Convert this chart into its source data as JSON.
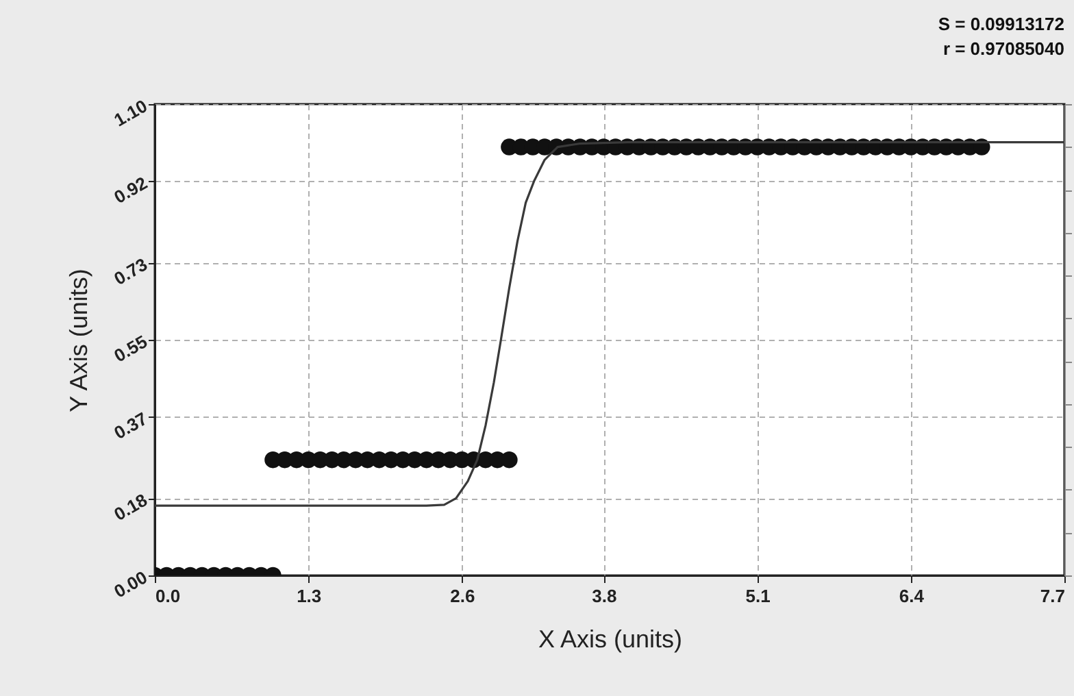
{
  "chart_data": {
    "type": "scatter",
    "xlabel": "X Axis (units)",
    "ylabel": "Y Axis (units)",
    "annotations": [
      "S = 0.09913172",
      "r = 0.97085040"
    ],
    "xlim": [
      0,
      7.7
    ],
    "xticks": [
      {
        "value": 0,
        "label": "0.0"
      },
      1.3,
      2.6,
      3.8,
      5.1,
      6.4,
      7.7
    ],
    "ylim": [
      0,
      1.1
    ],
    "yticks": [
      {
        "value": 0,
        "label": "0.00"
      },
      0.18,
      0.37,
      0.55,
      0.73,
      0.92,
      {
        "value": 1.1,
        "label": "1.10"
      }
    ],
    "grid": true,
    "marker": "circle",
    "series": [
      {
        "color": "#111111",
        "x": [
          0,
          0.1,
          0.2,
          0.3,
          0.4,
          0.5,
          0.6,
          0.7,
          0.8,
          0.9,
          1.0,
          1.0,
          1.1,
          1.2,
          1.3,
          1.4,
          1.5,
          1.6,
          1.7,
          1.8,
          1.9,
          2.0,
          2.1,
          2.2,
          2.3,
          2.4,
          2.5,
          2.6,
          2.7,
          2.8,
          2.9,
          3.0,
          3.0,
          3.1,
          3.2,
          3.3,
          3.4,
          3.5,
          3.6,
          3.7,
          3.8,
          3.9,
          4.0,
          4.1,
          4.2,
          4.3,
          4.4,
          4.5,
          4.6,
          4.7,
          4.8,
          4.9,
          5.0,
          5.1,
          5.2,
          5.3,
          5.4,
          5.5,
          5.6,
          5.7,
          5.8,
          5.9,
          6.0,
          6.1,
          6.2,
          6.3,
          6.4,
          6.5,
          6.6,
          6.7,
          6.8,
          6.9,
          7.0
        ],
        "values": [
          0,
          0,
          0,
          0,
          0,
          0,
          0,
          0,
          0,
          0,
          0,
          0.27,
          0.27,
          0.27,
          0.27,
          0.27,
          0.27,
          0.27,
          0.27,
          0.27,
          0.27,
          0.27,
          0.27,
          0.27,
          0.27,
          0.27,
          0.27,
          0.27,
          0.27,
          0.27,
          0.27,
          0.27,
          1.0,
          1.0,
          1.0,
          1.0,
          1.0,
          1.0,
          1.0,
          1.0,
          1.0,
          1.0,
          1.0,
          1.0,
          1.0,
          1.0,
          1.0,
          1.0,
          1.0,
          1.0,
          1.0,
          1.0,
          1.0,
          1.0,
          1.0,
          1.0,
          1.0,
          1.0,
          1.0,
          1.0,
          1.0,
          1.0,
          1.0,
          1.0,
          1.0,
          1.0,
          1.0,
          1.0,
          1.0,
          1.0,
          1.0,
          1.0,
          1.0
        ]
      },
      {
        "type": "line",
        "color": "#3a3a3a",
        "marker": "none",
        "x": [
          0,
          2.3,
          2.45,
          2.55,
          2.65,
          2.73,
          2.8,
          2.87,
          2.93,
          3.0,
          3.07,
          3.14,
          3.21,
          3.3,
          3.41,
          3.6,
          4.0,
          7.7
        ],
        "values": [
          0.163,
          0.163,
          0.165,
          0.18,
          0.22,
          0.27,
          0.35,
          0.45,
          0.55,
          0.67,
          0.78,
          0.87,
          0.92,
          0.97,
          1.0,
          1.008,
          1.011,
          1.011
        ]
      }
    ]
  }
}
